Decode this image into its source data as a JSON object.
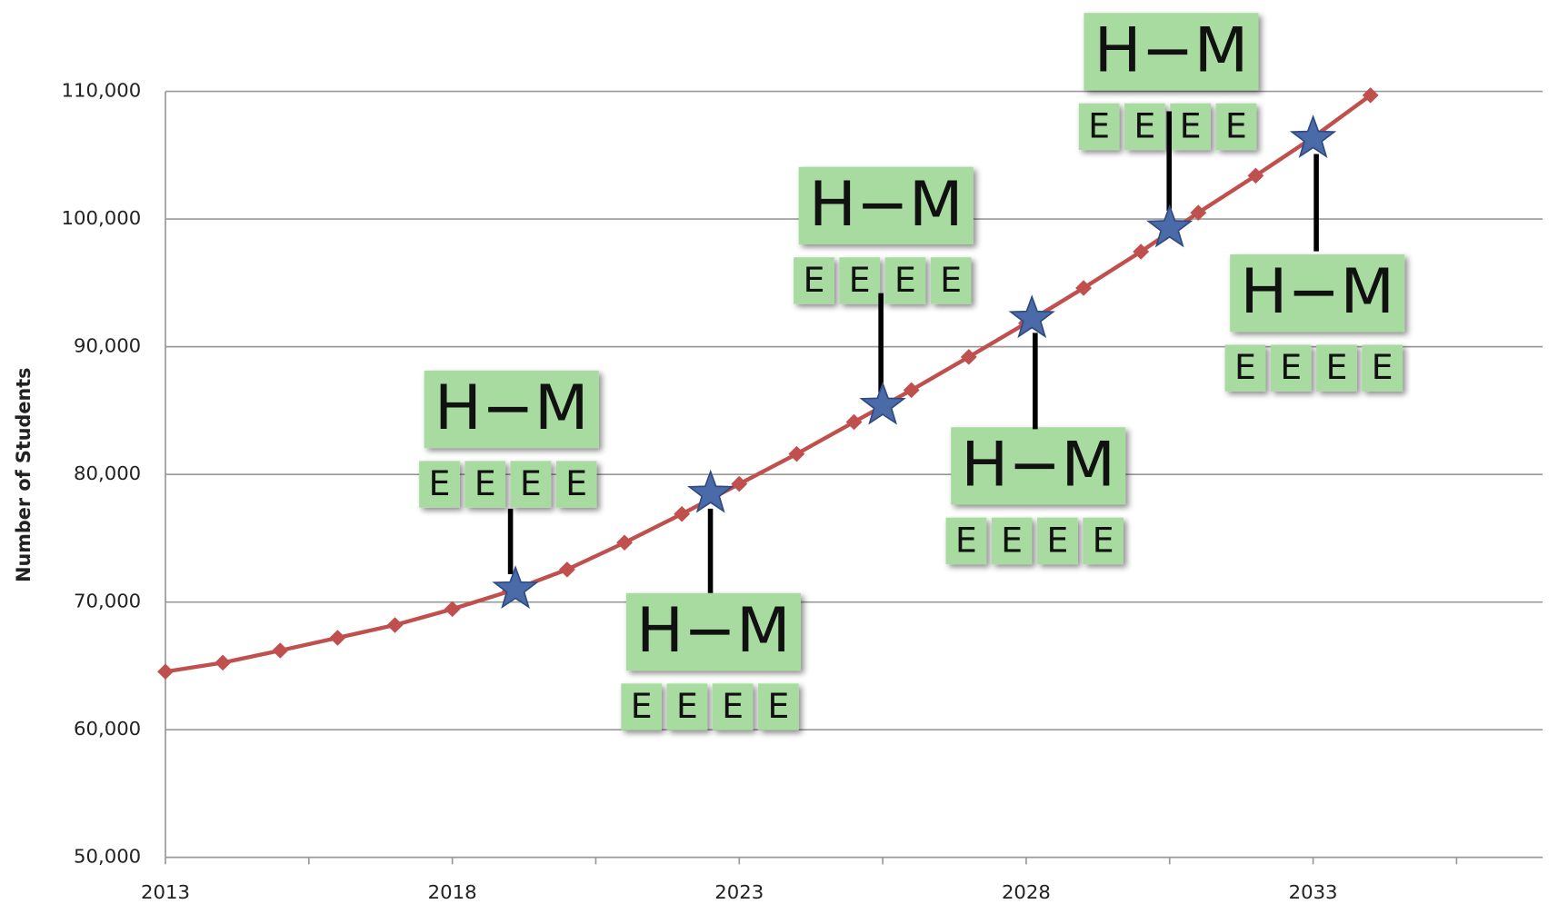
{
  "chart_data": {
    "type": "line",
    "y_label": "Number of Students",
    "x": [
      2013,
      2014,
      2015,
      2016,
      2017,
      2018,
      2019,
      2020,
      2021,
      2022,
      2023,
      2024,
      2025,
      2026,
      2027,
      2028,
      2029,
      2030,
      2031,
      2032,
      2033,
      2034
    ],
    "series": [
      {
        "color": "#c0504d",
        "values": [
          64550,
          65250,
          66200,
          67200,
          68200,
          69450,
          70850,
          72550,
          74650,
          76900,
          79250,
          81600,
          84100,
          86600,
          89200,
          91850,
          94600,
          97450,
          100500,
          103400,
          106400,
          109700
        ]
      }
    ],
    "stars": {
      "color": "#4a6aa8",
      "x": [
        2019.1,
        2022.5,
        2025.5,
        2028.1,
        2030.5,
        2033
      ],
      "y": [
        71000,
        78500,
        85400,
        92200,
        99300,
        106300
      ]
    },
    "annotations": [
      {
        "title": "H−M",
        "items": [
          "E",
          "E",
          "E",
          "E"
        ]
      },
      {
        "title": "H−M",
        "items": [
          "E",
          "E",
          "E",
          "E"
        ]
      },
      {
        "title": "H−M",
        "items": [
          "E",
          "E",
          "E",
          "E"
        ]
      },
      {
        "title": "H−M",
        "items": [
          "E",
          "E",
          "E",
          "E"
        ]
      },
      {
        "title": "H−M",
        "items": [
          "E",
          "E",
          "E",
          "E"
        ]
      },
      {
        "title": "H−M",
        "items": [
          "E",
          "E",
          "E",
          "E"
        ]
      }
    ],
    "xlim": [
      2013,
      2037
    ],
    "xticks": [
      2013,
      2018,
      2023,
      2028,
      2033
    ],
    "xminorticks": [
      2015.5,
      2020.5,
      2025.5,
      2030.5,
      2035.5
    ],
    "ylim": [
      50000,
      110000
    ],
    "yticks": [
      {
        "value": 50000,
        "label": "50,000"
      },
      {
        "value": 60000,
        "label": "60,000"
      },
      {
        "value": 70000,
        "label": "70,000"
      },
      {
        "value": 80000,
        "label": "80,000"
      },
      {
        "value": 90000,
        "label": "90,000"
      },
      {
        "value": 100000,
        "label": "100,000"
      },
      {
        "value": 110000,
        "label": "110,000"
      }
    ],
    "grid": true,
    "annotation_color": "#a8dba0"
  }
}
